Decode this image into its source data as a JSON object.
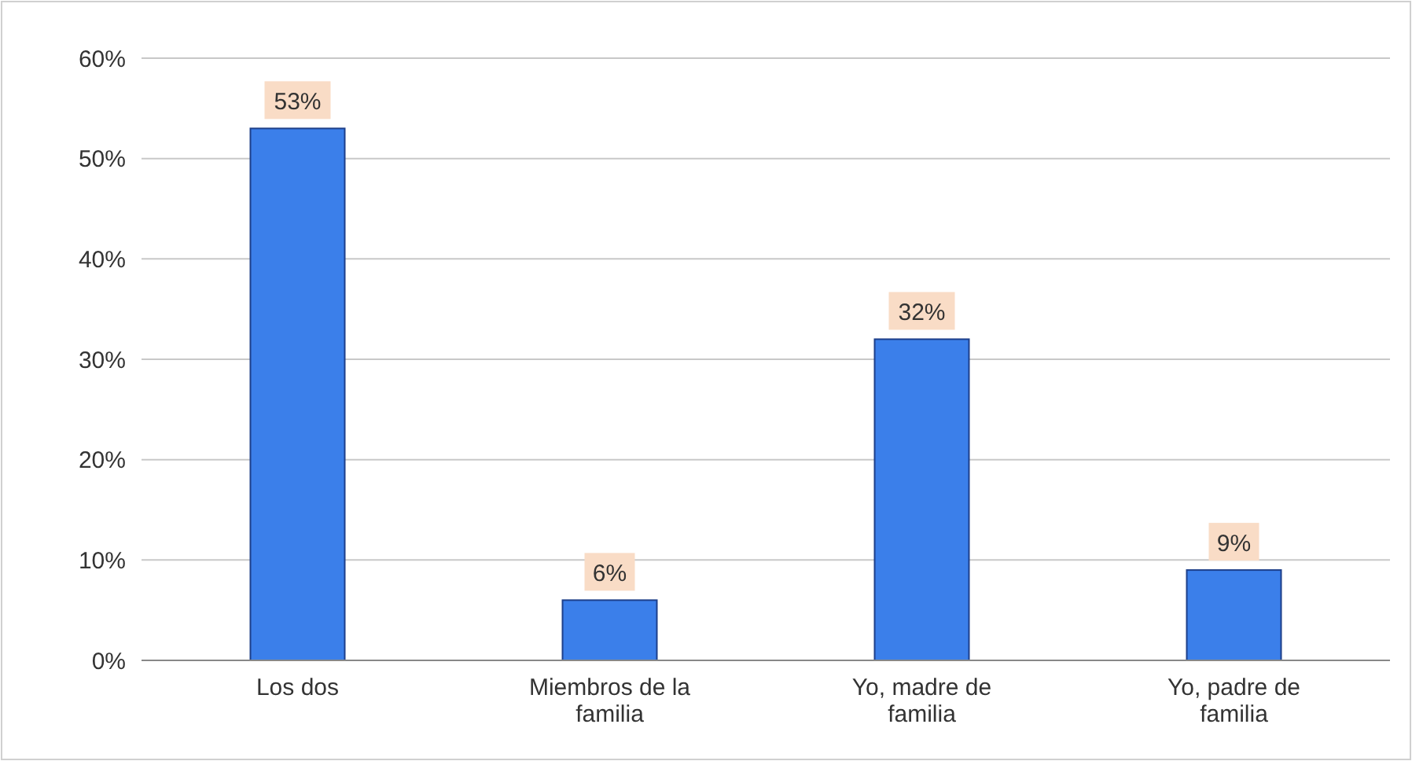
{
  "chart_data": {
    "type": "bar",
    "categories": [
      "Los dos",
      "Miembros de la familia",
      "Yo, madre de familia",
      "Yo, padre de familia"
    ],
    "values": [
      53,
      6,
      32,
      9
    ],
    "value_labels": [
      "53%",
      "6%",
      "32%",
      "9%"
    ],
    "color": "#3b7fea",
    "ylim": [
      0,
      60
    ],
    "yticks": [
      {
        "value": 0,
        "label": "0%"
      },
      {
        "value": 10,
        "label": "10%"
      },
      {
        "value": 20,
        "label": "20%"
      },
      {
        "value": 30,
        "label": "30%"
      },
      {
        "value": 40,
        "label": "40%"
      },
      {
        "value": 50,
        "label": "50%"
      },
      {
        "value": 60,
        "label": "60%"
      }
    ],
    "grid": "y"
  }
}
